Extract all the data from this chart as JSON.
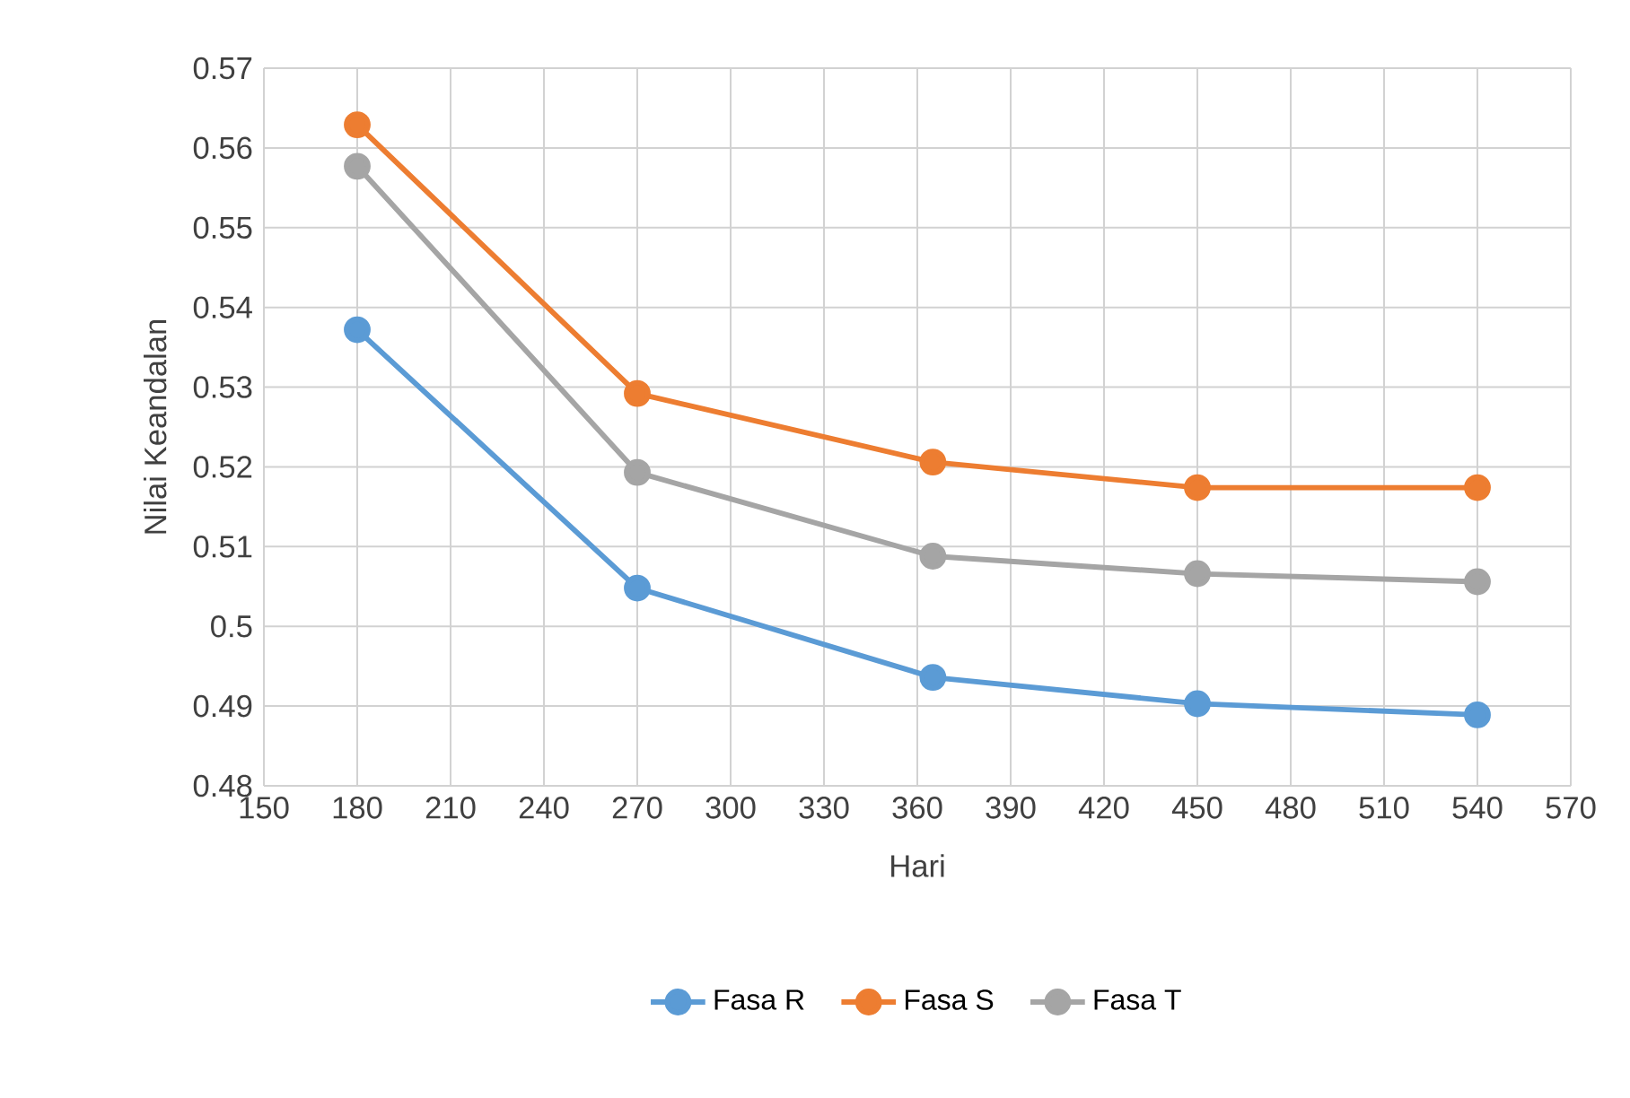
{
  "chart_data": {
    "type": "line",
    "xlabel": "Hari",
    "ylabel": "Nilai Keandalan",
    "x": [
      180,
      270,
      365,
      450,
      540
    ],
    "series": [
      {
        "name": "Fasa R",
        "color": "#5b9bd5",
        "values": [
          0.5372,
          0.5048,
          0.4936,
          0.4903,
          0.4889
        ]
      },
      {
        "name": "Fasa S",
        "color": "#ed7d31",
        "values": [
          0.5629,
          0.5292,
          0.5206,
          0.5174,
          0.5174
        ]
      },
      {
        "name": "Fasa T",
        "color": "#a5a5a5",
        "values": [
          0.5577,
          0.5193,
          0.5088,
          0.5066,
          0.5056
        ]
      }
    ],
    "xlim": [
      150,
      570
    ],
    "xticks": [
      150,
      180,
      210,
      240,
      270,
      300,
      330,
      360,
      390,
      420,
      450,
      480,
      510,
      540,
      570
    ],
    "ylim": [
      0.48,
      0.57
    ],
    "yticks": [
      0.48,
      0.49,
      0.5,
      0.51,
      0.52,
      0.53,
      0.54,
      0.55,
      0.56,
      0.57
    ],
    "grid": true,
    "legend": "bottom",
    "marker": "circle",
    "line_style": "solid"
  }
}
